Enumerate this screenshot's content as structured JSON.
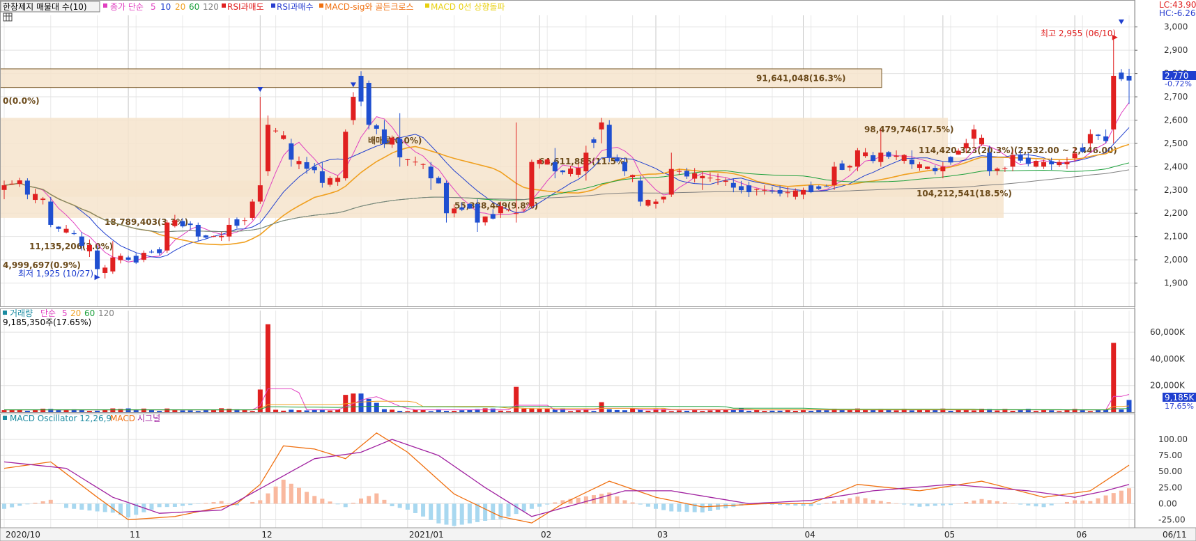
{
  "legends": {
    "price": {
      "title": "한창제지 매물대 수(10)",
      "ma_label": "종가 단순",
      "ma": [
        "5",
        "10",
        "20",
        "60",
        "120"
      ],
      "ma_colors": [
        "#e040c0",
        "#1f3fcf",
        "#f0a020",
        "#1a9f3a",
        "#808080"
      ],
      "signals": [
        "RSI과매도",
        "RSI과매수",
        "MACD-sig와 골든크로스",
        "MACD 0선 상향돌파"
      ],
      "signal_colors": [
        "#e02020",
        "#2a3fd0",
        "#f07010",
        "#e8d010"
      ]
    },
    "volume": {
      "title": "거래량",
      "ma_label": "단순",
      "ma": [
        "5",
        "20",
        "60",
        "120"
      ],
      "ma_colors": [
        "#e040c0",
        "#f0a020",
        "#1a9f3a",
        "#808080"
      ],
      "title_color": "#1a8aa0",
      "value_text": "9,185,350주(17.65%)"
    },
    "macd": {
      "title": "MACD Oscillator 12,26,9",
      "macd": "MACD",
      "signal": "시그널",
      "colors": {
        "title": "#1a8aa0",
        "macd": "#f07010",
        "signal": "#a020a0"
      }
    }
  },
  "price_badges": {
    "lc": "LC:43.90",
    "hc": "HC:-6.26",
    "last": "2,770",
    "change": "-0.72%"
  },
  "volume_badges": {
    "last": "9,185K",
    "pct": "17.65%"
  },
  "annotations": {
    "high": "최고 2,955 (06/10)",
    "low": "최저 1,925 (10/27)"
  },
  "chart_data": [
    {
      "type": "candlestick",
      "title": "한창제지 매물대 수(10)",
      "ylim": [
        1800,
        3050
      ],
      "y_ticks": [
        1900,
        2000,
        2100,
        2200,
        2300,
        2400,
        2500,
        2600,
        2700,
        2800,
        2900,
        3000
      ],
      "y_tick_labels": [
        "1,900",
        "2,000",
        "2,100",
        "2,200",
        "2,300",
        "2,400",
        "2,500",
        "2,600",
        "2,700",
        "2,800",
        "2,900",
        "3,000"
      ],
      "x_tick_labels": [
        "2020/10",
        "11",
        "12",
        "2021/01",
        "02",
        "03",
        "04",
        "05",
        "06",
        "06/11"
      ],
      "x_tick_index": [
        0,
        16,
        33,
        52,
        69,
        84,
        103,
        121,
        138,
        145
      ],
      "bars": 146,
      "ohlc": [
        {
          "i": 0,
          "o": 2300,
          "h": 2340,
          "l": 2260,
          "c": 2320
        },
        {
          "i": 3,
          "o": 2340,
          "h": 2350,
          "l": 2260,
          "c": 2280
        },
        {
          "i": 6,
          "o": 2250,
          "h": 2270,
          "l": 2140,
          "c": 2150
        },
        {
          "i": 10,
          "o": 2100,
          "h": 2120,
          "l": 2040,
          "c": 2060
        },
        {
          "i": 12,
          "o": 2040,
          "h": 2060,
          "l": 1925,
          "c": 1960
        },
        {
          "i": 14,
          "o": 1950,
          "h": 2080,
          "l": 1940,
          "c": 2010
        },
        {
          "i": 18,
          "o": 2000,
          "h": 2040,
          "l": 1990,
          "c": 2030
        },
        {
          "i": 21,
          "o": 2040,
          "h": 2170,
          "l": 2030,
          "c": 2160
        },
        {
          "i": 25,
          "o": 2150,
          "h": 2160,
          "l": 2080,
          "c": 2100
        },
        {
          "i": 29,
          "o": 2100,
          "h": 2180,
          "l": 2080,
          "c": 2150
        },
        {
          "i": 32,
          "o": 2180,
          "h": 2260,
          "l": 2170,
          "c": 2250
        },
        {
          "i": 33,
          "o": 2250,
          "h": 2700,
          "l": 2240,
          "c": 2320
        },
        {
          "i": 34,
          "o": 2380,
          "h": 2620,
          "l": 2360,
          "c": 2580
        },
        {
          "i": 37,
          "o": 2500,
          "h": 2520,
          "l": 2400,
          "c": 2430
        },
        {
          "i": 41,
          "o": 2380,
          "h": 2420,
          "l": 2310,
          "c": 2330
        },
        {
          "i": 44,
          "o": 2350,
          "h": 2560,
          "l": 2340,
          "c": 2550
        },
        {
          "i": 45,
          "o": 2600,
          "h": 2720,
          "l": 2580,
          "c": 2700
        },
        {
          "i": 46,
          "o": 2790,
          "h": 2810,
          "l": 2660,
          "c": 2680
        },
        {
          "i": 47,
          "o": 2760,
          "h": 2770,
          "l": 2560,
          "c": 2580
        },
        {
          "i": 49,
          "o": 2560,
          "h": 2600,
          "l": 2480,
          "c": 2500
        },
        {
          "i": 51,
          "o": 2520,
          "h": 2630,
          "l": 2400,
          "c": 2440
        },
        {
          "i": 55,
          "o": 2400,
          "h": 2420,
          "l": 2300,
          "c": 2350
        },
        {
          "i": 57,
          "o": 2330,
          "h": 2340,
          "l": 2160,
          "c": 2200
        },
        {
          "i": 61,
          "o": 2240,
          "h": 2260,
          "l": 2120,
          "c": 2160
        },
        {
          "i": 64,
          "o": 2200,
          "h": 2250,
          "l": 2180,
          "c": 2230
        },
        {
          "i": 66,
          "o": 2200,
          "h": 2590,
          "l": 2160,
          "c": 2200
        },
        {
          "i": 68,
          "o": 2230,
          "h": 2430,
          "l": 2220,
          "c": 2420
        },
        {
          "i": 71,
          "o": 2420,
          "h": 2480,
          "l": 2350,
          "c": 2380
        },
        {
          "i": 75,
          "o": 2380,
          "h": 2490,
          "l": 2340,
          "c": 2460
        },
        {
          "i": 77,
          "o": 2560,
          "h": 2610,
          "l": 2500,
          "c": 2590
        },
        {
          "i": 78,
          "o": 2580,
          "h": 2600,
          "l": 2420,
          "c": 2440
        },
        {
          "i": 80,
          "o": 2420,
          "h": 2440,
          "l": 2360,
          "c": 2380
        },
        {
          "i": 82,
          "o": 2340,
          "h": 2360,
          "l": 2230,
          "c": 2250
        },
        {
          "i": 84,
          "o": 2240,
          "h": 2260,
          "l": 2220,
          "c": 2250
        },
        {
          "i": 86,
          "o": 2280,
          "h": 2460,
          "l": 2270,
          "c": 2390
        },
        {
          "i": 90,
          "o": 2350,
          "h": 2380,
          "l": 2300,
          "c": 2360
        },
        {
          "i": 94,
          "o": 2330,
          "h": 2350,
          "l": 2290,
          "c": 2310
        },
        {
          "i": 98,
          "o": 2300,
          "h": 2320,
          "l": 2280,
          "c": 2300
        },
        {
          "i": 103,
          "o": 2280,
          "h": 2310,
          "l": 2260,
          "c": 2300
        },
        {
          "i": 107,
          "o": 2320,
          "h": 2420,
          "l": 2300,
          "c": 2400
        },
        {
          "i": 110,
          "o": 2400,
          "h": 2480,
          "l": 2380,
          "c": 2470
        },
        {
          "i": 113,
          "o": 2420,
          "h": 2560,
          "l": 2400,
          "c": 2460
        },
        {
          "i": 117,
          "o": 2430,
          "h": 2470,
          "l": 2390,
          "c": 2410
        },
        {
          "i": 121,
          "o": 2380,
          "h": 2420,
          "l": 2350,
          "c": 2400
        },
        {
          "i": 125,
          "o": 2520,
          "h": 2580,
          "l": 2480,
          "c": 2560
        },
        {
          "i": 127,
          "o": 2460,
          "h": 2490,
          "l": 2360,
          "c": 2380
        },
        {
          "i": 130,
          "o": 2400,
          "h": 2470,
          "l": 2380,
          "c": 2450
        },
        {
          "i": 134,
          "o": 2400,
          "h": 2430,
          "l": 2390,
          "c": 2420
        },
        {
          "i": 137,
          "o": 2410,
          "h": 2440,
          "l": 2390,
          "c": 2420
        },
        {
          "i": 140,
          "o": 2500,
          "h": 2560,
          "l": 2480,
          "c": 2540
        },
        {
          "i": 142,
          "o": 2530,
          "h": 2560,
          "l": 2500,
          "c": 2510
        },
        {
          "i": 143,
          "o": 2560,
          "h": 2950,
          "l": 2500,
          "c": 2790
        },
        {
          "i": 145,
          "o": 2790,
          "h": 2820,
          "l": 2670,
          "c": 2770
        }
      ],
      "price_zones": [
        {
          "price_low": 2740,
          "price_high": 2820,
          "label": "91,641,048(16.3%)"
        },
        {
          "price_low": 2440,
          "price_high": 2610,
          "label": "98,479,746(17.5%)"
        },
        {
          "price_low": 2180,
          "price_high": 2440,
          "label": "114,420,323(20.3%)(2,532.00 ~ 2,446.00)"
        },
        {
          "price_low": 2270,
          "price_high": 2340,
          "label": "104,212,541(18.5%)"
        }
      ],
      "zone_labels": [
        "0(0.0%)",
        "18,789,403(3.3%)",
        "11,135,206(2.0%)",
        "4,999,697(0.9%)",
        "64,611,886(11.5%)",
        "55,388,449(9.8%)",
        "배매물(0.0%)"
      ],
      "high": {
        "value": 2955,
        "date": "06/10"
      },
      "low": {
        "value": 1925,
        "date": "10/27"
      }
    },
    {
      "type": "bar",
      "title": "거래량",
      "ylim": [
        0,
        70000
      ],
      "y_ticks": [
        20000,
        40000,
        60000
      ],
      "y_tick_labels": [
        "20,000K",
        "40,000K",
        "60,000K"
      ],
      "spikes": [
        {
          "i": 33,
          "value": 17000
        },
        {
          "i": 34,
          "value": 66000
        },
        {
          "i": 44,
          "value": 13000
        },
        {
          "i": 45,
          "value": 14000
        },
        {
          "i": 46,
          "value": 14000
        },
        {
          "i": 47,
          "value": 10000
        },
        {
          "i": 48,
          "value": 7000
        },
        {
          "i": 66,
          "value": 19000
        },
        {
          "i": 77,
          "value": 7500
        },
        {
          "i": 143,
          "value": 52000
        },
        {
          "i": 145,
          "value": 9185
        }
      ]
    },
    {
      "type": "line",
      "title": "MACD Oscillator 12,26,9",
      "ylim": [
        -37.5,
        125
      ],
      "y_ticks": [
        -25,
        0,
        25,
        50,
        75,
        100
      ],
      "y_tick_labels": [
        "-25.00",
        "0.00",
        "25.00",
        "50.00",
        "75.00",
        "100.00"
      ],
      "macd_keypoints": [
        [
          0,
          55
        ],
        [
          6,
          65
        ],
        [
          12,
          10
        ],
        [
          16,
          -25
        ],
        [
          22,
          -20
        ],
        [
          30,
          0
        ],
        [
          33,
          30
        ],
        [
          36,
          90
        ],
        [
          40,
          85
        ],
        [
          44,
          70
        ],
        [
          48,
          110
        ],
        [
          52,
          80
        ],
        [
          58,
          15
        ],
        [
          64,
          -20
        ],
        [
          68,
          -30
        ],
        [
          72,
          0
        ],
        [
          78,
          35
        ],
        [
          84,
          10
        ],
        [
          90,
          -5
        ],
        [
          98,
          0
        ],
        [
          104,
          0
        ],
        [
          110,
          30
        ],
        [
          118,
          20
        ],
        [
          126,
          35
        ],
        [
          134,
          10
        ],
        [
          140,
          20
        ],
        [
          145,
          60
        ]
      ],
      "signal_keypoints": [
        [
          0,
          65
        ],
        [
          8,
          55
        ],
        [
          14,
          10
        ],
        [
          20,
          -15
        ],
        [
          28,
          -10
        ],
        [
          34,
          30
        ],
        [
          40,
          70
        ],
        [
          46,
          80
        ],
        [
          50,
          100
        ],
        [
          56,
          75
        ],
        [
          62,
          25
        ],
        [
          68,
          -20
        ],
        [
          74,
          0
        ],
        [
          80,
          20
        ],
        [
          86,
          20
        ],
        [
          96,
          0
        ],
        [
          104,
          5
        ],
        [
          112,
          20
        ],
        [
          122,
          30
        ],
        [
          132,
          20
        ],
        [
          138,
          10
        ],
        [
          142,
          20
        ],
        [
          145,
          30
        ]
      ]
    }
  ]
}
